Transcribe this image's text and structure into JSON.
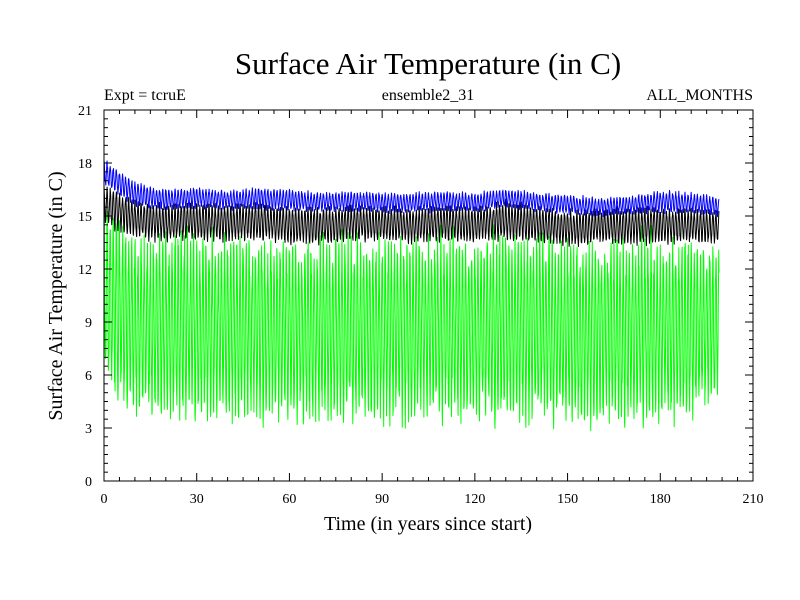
{
  "chart_data": {
    "type": "line",
    "title": "Surface Air Temperature (in C)",
    "subtitle_left": "Expt = tcruE",
    "subtitle_center": "ensemble2_31",
    "subtitle_right": "ALL_MONTHS",
    "xlabel": "Time (in years since start)",
    "ylabel": "Surface Air Temperature (in C)",
    "xlim": [
      0,
      210
    ],
    "ylim": [
      0,
      21
    ],
    "xticks": [
      0,
      30,
      60,
      90,
      120,
      150,
      180,
      210
    ],
    "yticks": [
      0,
      3,
      6,
      9,
      12,
      15,
      18,
      21
    ],
    "x_extent": [
      0,
      199
    ],
    "series": [
      {
        "name": "green",
        "color": "#00ff00",
        "description_range": "monthly oscillation",
        "x": [
          0,
          10,
          20,
          30,
          40,
          50,
          60,
          70,
          80,
          90,
          100,
          110,
          120,
          130,
          140,
          150,
          160,
          170,
          180,
          190,
          199
        ],
        "min": [
          5.5,
          3.8,
          3.6,
          3.6,
          3.7,
          3.6,
          3.5,
          3.4,
          3.6,
          3.6,
          3.5,
          3.6,
          3.5,
          3.7,
          3.6,
          3.3,
          3.5,
          3.4,
          3.5,
          3.5,
          5.0
        ],
        "max": [
          15.5,
          14.0,
          13.8,
          14.0,
          13.7,
          13.8,
          13.6,
          13.7,
          13.8,
          13.7,
          13.6,
          13.8,
          13.7,
          14.0,
          13.7,
          13.5,
          13.6,
          13.6,
          13.7,
          13.6,
          13.2
        ]
      },
      {
        "name": "black",
        "color": "#000000",
        "x": [
          0,
          10,
          20,
          30,
          40,
          50,
          60,
          70,
          80,
          90,
          100,
          110,
          120,
          130,
          140,
          150,
          160,
          170,
          180,
          190,
          199
        ],
        "min": [
          14.5,
          13.8,
          13.6,
          13.7,
          13.6,
          13.7,
          13.5,
          13.4,
          13.6,
          13.6,
          13.5,
          13.6,
          13.5,
          13.7,
          13.6,
          13.3,
          13.5,
          13.4,
          13.5,
          13.5,
          13.4
        ],
        "max": [
          16.8,
          15.9,
          15.6,
          15.8,
          15.6,
          15.7,
          15.5,
          15.5,
          15.6,
          15.5,
          15.4,
          15.6,
          15.5,
          15.8,
          15.5,
          15.3,
          15.4,
          15.4,
          15.5,
          15.4,
          15.3
        ]
      },
      {
        "name": "blue",
        "color": "#0000ff",
        "x": [
          0,
          10,
          20,
          30,
          40,
          50,
          60,
          70,
          80,
          90,
          100,
          110,
          120,
          130,
          140,
          150,
          160,
          170,
          180,
          190,
          199
        ],
        "min": [
          16.8,
          15.6,
          15.3,
          15.5,
          15.4,
          15.4,
          15.3,
          15.3,
          15.3,
          15.2,
          15.2,
          15.3,
          15.2,
          15.5,
          15.3,
          15.1,
          15.0,
          15.1,
          15.2,
          15.2,
          15.0
        ],
        "max": [
          18.2,
          16.9,
          16.5,
          16.6,
          16.4,
          16.6,
          16.5,
          16.3,
          16.4,
          16.3,
          16.3,
          16.4,
          16.3,
          16.5,
          16.3,
          16.2,
          16.0,
          16.1,
          16.4,
          16.3,
          16.1
        ]
      }
    ]
  }
}
